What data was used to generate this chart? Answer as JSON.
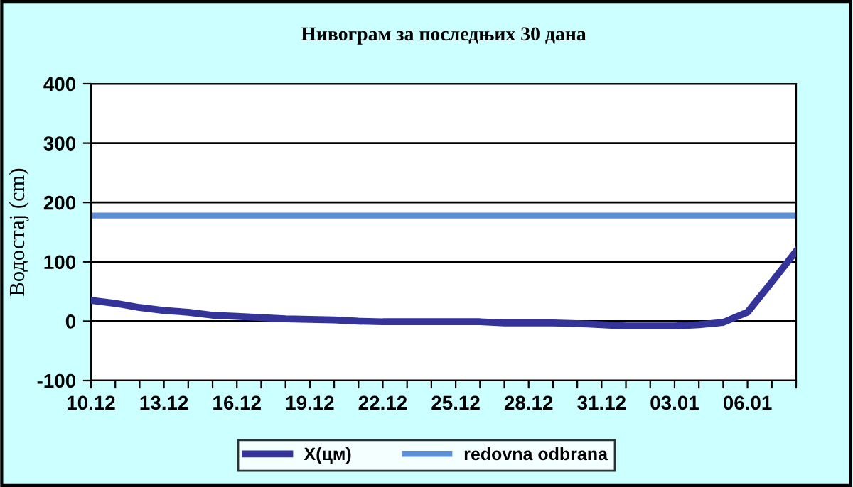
{
  "chart_data": {
    "type": "line",
    "title": "Нивограм за последњих 30 дана",
    "ylabel": "Водостај (cm)",
    "categories": [
      "10.12",
      null,
      null,
      "13.12",
      null,
      null,
      "16.12",
      null,
      null,
      "19.12",
      null,
      null,
      "22.12",
      null,
      null,
      "25.12",
      null,
      null,
      "28.12",
      null,
      null,
      "31.12",
      null,
      null,
      "03.01",
      null,
      null,
      "06.01",
      null,
      null
    ],
    "series": [
      {
        "name": "X(цм)",
        "color": "#333399",
        "values": [
          35,
          30,
          23,
          18,
          15,
          10,
          8,
          6,
          4,
          3,
          2,
          0,
          -1,
          -1,
          -1,
          -1,
          -1,
          -3,
          -3,
          -3,
          -4,
          -6,
          -8,
          -8,
          -8,
          -6,
          -2,
          15,
          66,
          118
        ]
      }
    ],
    "ref_lines": [
      {
        "axis": "y",
        "value": 178,
        "label": "redovna odbrana",
        "color": "#5b8fd6"
      }
    ],
    "ylim": [
      -100,
      400
    ],
    "yticks": [
      -100,
      0,
      100,
      200,
      300,
      400
    ],
    "grid": "y",
    "legend": "bottom",
    "marker": "none",
    "line_style": "solid"
  }
}
